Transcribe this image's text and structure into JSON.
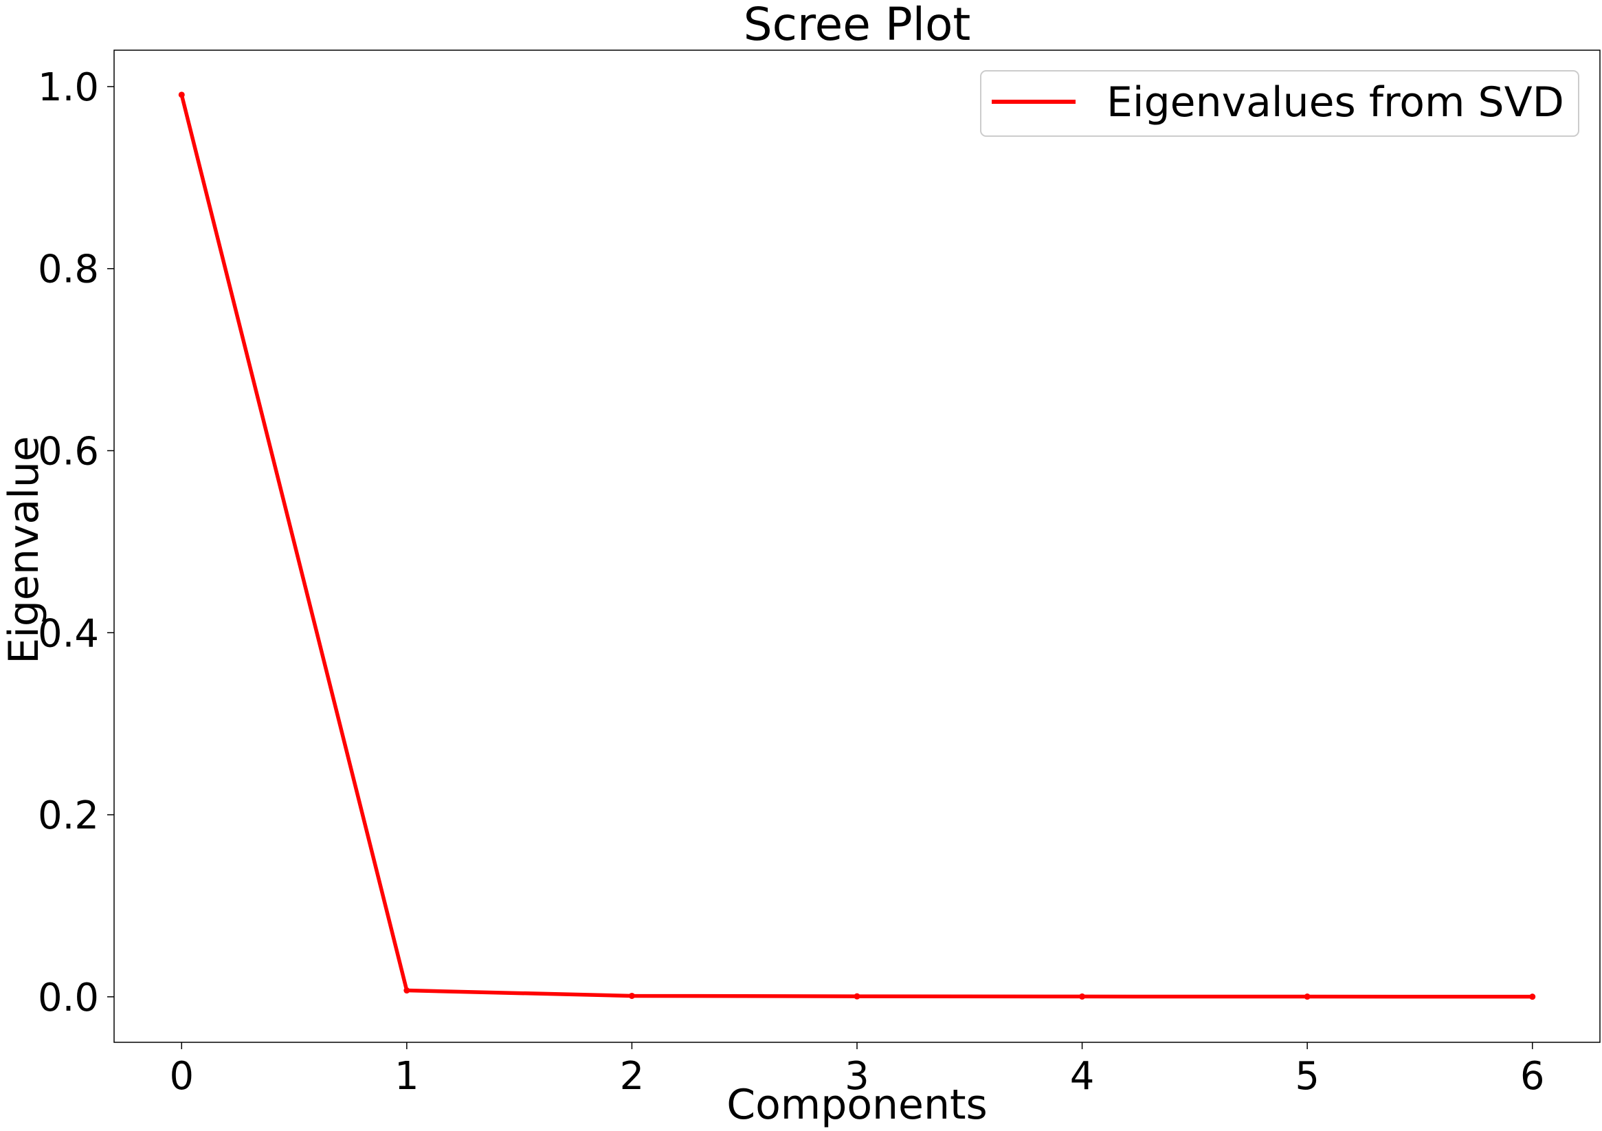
{
  "chart_data": {
    "type": "line",
    "title": "Scree Plot",
    "xlabel": "Components",
    "ylabel": "Eigenvalue",
    "x": [
      0,
      1,
      2,
      3,
      4,
      5,
      6
    ],
    "series": [
      {
        "name": "Eigenvalues from SVD",
        "values": [
          0.991,
          0.007,
          0.001,
          0.0005,
          0.0003,
          0.0002,
          0.0001
        ],
        "color": "#ff0000"
      }
    ],
    "xlim": [
      -0.3,
      6.3
    ],
    "ylim": [
      -0.05,
      1.04
    ],
    "xticks": [
      0,
      1,
      2,
      3,
      4,
      5,
      6
    ],
    "xtick_labels": [
      "0",
      "1",
      "2",
      "3",
      "4",
      "5",
      "6"
    ],
    "yticks": [
      0.0,
      0.2,
      0.4,
      0.6,
      0.8,
      1.0
    ],
    "ytick_labels": [
      "0.0",
      "0.2",
      "0.4",
      "0.6",
      "0.8",
      "1.0"
    ],
    "grid": false,
    "legend_position": "top-right"
  }
}
